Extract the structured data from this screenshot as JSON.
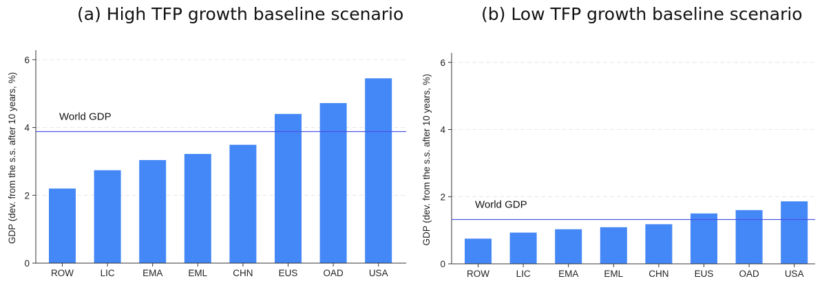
{
  "chart_data": [
    {
      "type": "bar",
      "title": "(a) High TFP growth baseline scenario",
      "ylabel": "GDP (dev. from the s.s. after 10 years, %)",
      "xlabel": "",
      "categories": [
        "ROW",
        "LIC",
        "EMA",
        "EML",
        "CHN",
        "EUS",
        "OAD",
        "USA"
      ],
      "values": [
        2.2,
        2.74,
        3.04,
        3.22,
        3.49,
        4.4,
        4.72,
        5.45
      ],
      "ylim": [
        0,
        6.2
      ],
      "yticks": [
        0,
        2,
        4,
        6
      ],
      "reference_line": {
        "label": "World GDP",
        "value": 3.88,
        "color": "#4a55e8"
      },
      "bar_color": "#4487f6",
      "grid": "dashed horizontal"
    },
    {
      "type": "bar",
      "title": "(b) Low TFP growth baseline scenario",
      "ylabel": "GDP (dev. from the s.s. after 10 years, %)",
      "xlabel": "",
      "categories": [
        "ROW",
        "LIC",
        "EMA",
        "EML",
        "CHN",
        "EUS",
        "OAD",
        "USA"
      ],
      "values": [
        0.75,
        0.93,
        1.03,
        1.09,
        1.18,
        1.5,
        1.6,
        1.86
      ],
      "ylim": [
        0,
        6.2
      ],
      "yticks": [
        0,
        2,
        4,
        6
      ],
      "reference_line": {
        "label": "World GDP",
        "value": 1.32,
        "color": "#4a55e8"
      },
      "bar_color": "#4487f6",
      "grid": "dashed horizontal"
    }
  ]
}
